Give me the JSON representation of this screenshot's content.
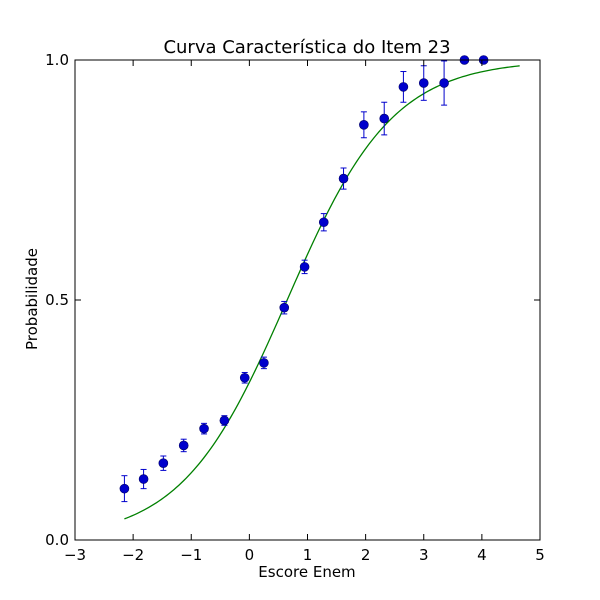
{
  "chart_data": {
    "type": "scatter",
    "title": "Curva Característica do Item 23",
    "xlabel": "Escore Enem",
    "ylabel": "Probabilidade",
    "xlim": [
      -3,
      5
    ],
    "ylim": [
      0,
      1
    ],
    "grid": false,
    "x_ticks": [
      -3,
      -2,
      -1,
      0,
      1,
      2,
      3,
      4,
      5
    ],
    "x_tick_labels": [
      "−3",
      "−2",
      "−1",
      "0",
      "1",
      "2",
      "3",
      "4",
      "5"
    ],
    "y_ticks": [
      0,
      0.5,
      1
    ],
    "y_tick_labels": [
      "0.0",
      "0.5",
      "1.0"
    ],
    "series": [
      {
        "type": "errorbar",
        "color": "#0000cc",
        "points": [
          {
            "x": -2.15,
            "y": 0.107,
            "err": 0.027
          },
          {
            "x": -1.82,
            "y": 0.127,
            "err": 0.02
          },
          {
            "x": -1.48,
            "y": 0.16,
            "err": 0.015
          },
          {
            "x": -1.13,
            "y": 0.197,
            "err": 0.013
          },
          {
            "x": -0.78,
            "y": 0.232,
            "err": 0.011
          },
          {
            "x": -0.43,
            "y": 0.249,
            "err": 0.01
          },
          {
            "x": -0.08,
            "y": 0.338,
            "err": 0.011
          },
          {
            "x": 0.25,
            "y": 0.369,
            "err": 0.012
          },
          {
            "x": 0.6,
            "y": 0.484,
            "err": 0.013
          },
          {
            "x": 0.95,
            "y": 0.569,
            "err": 0.014
          },
          {
            "x": 1.28,
            "y": 0.662,
            "err": 0.018
          },
          {
            "x": 1.62,
            "y": 0.753,
            "err": 0.022
          },
          {
            "x": 1.97,
            "y": 0.865,
            "err": 0.027
          },
          {
            "x": 2.32,
            "y": 0.878,
            "err": 0.034
          },
          {
            "x": 2.65,
            "y": 0.944,
            "err": 0.032
          },
          {
            "x": 3.0,
            "y": 0.952,
            "err": 0.036
          },
          {
            "x": 3.35,
            "y": 0.952,
            "err": 0.046
          },
          {
            "x": 3.7,
            "y": 1.0,
            "err": 0.0
          },
          {
            "x": 4.03,
            "y": 1.0,
            "err": 0.0
          }
        ]
      },
      {
        "type": "line",
        "color": "#008000",
        "curve": {
          "model": "logistic",
          "a": 1.1,
          "b": 0.65,
          "c": 0.0
        },
        "x_range": [
          -2.15,
          4.65
        ]
      }
    ]
  }
}
